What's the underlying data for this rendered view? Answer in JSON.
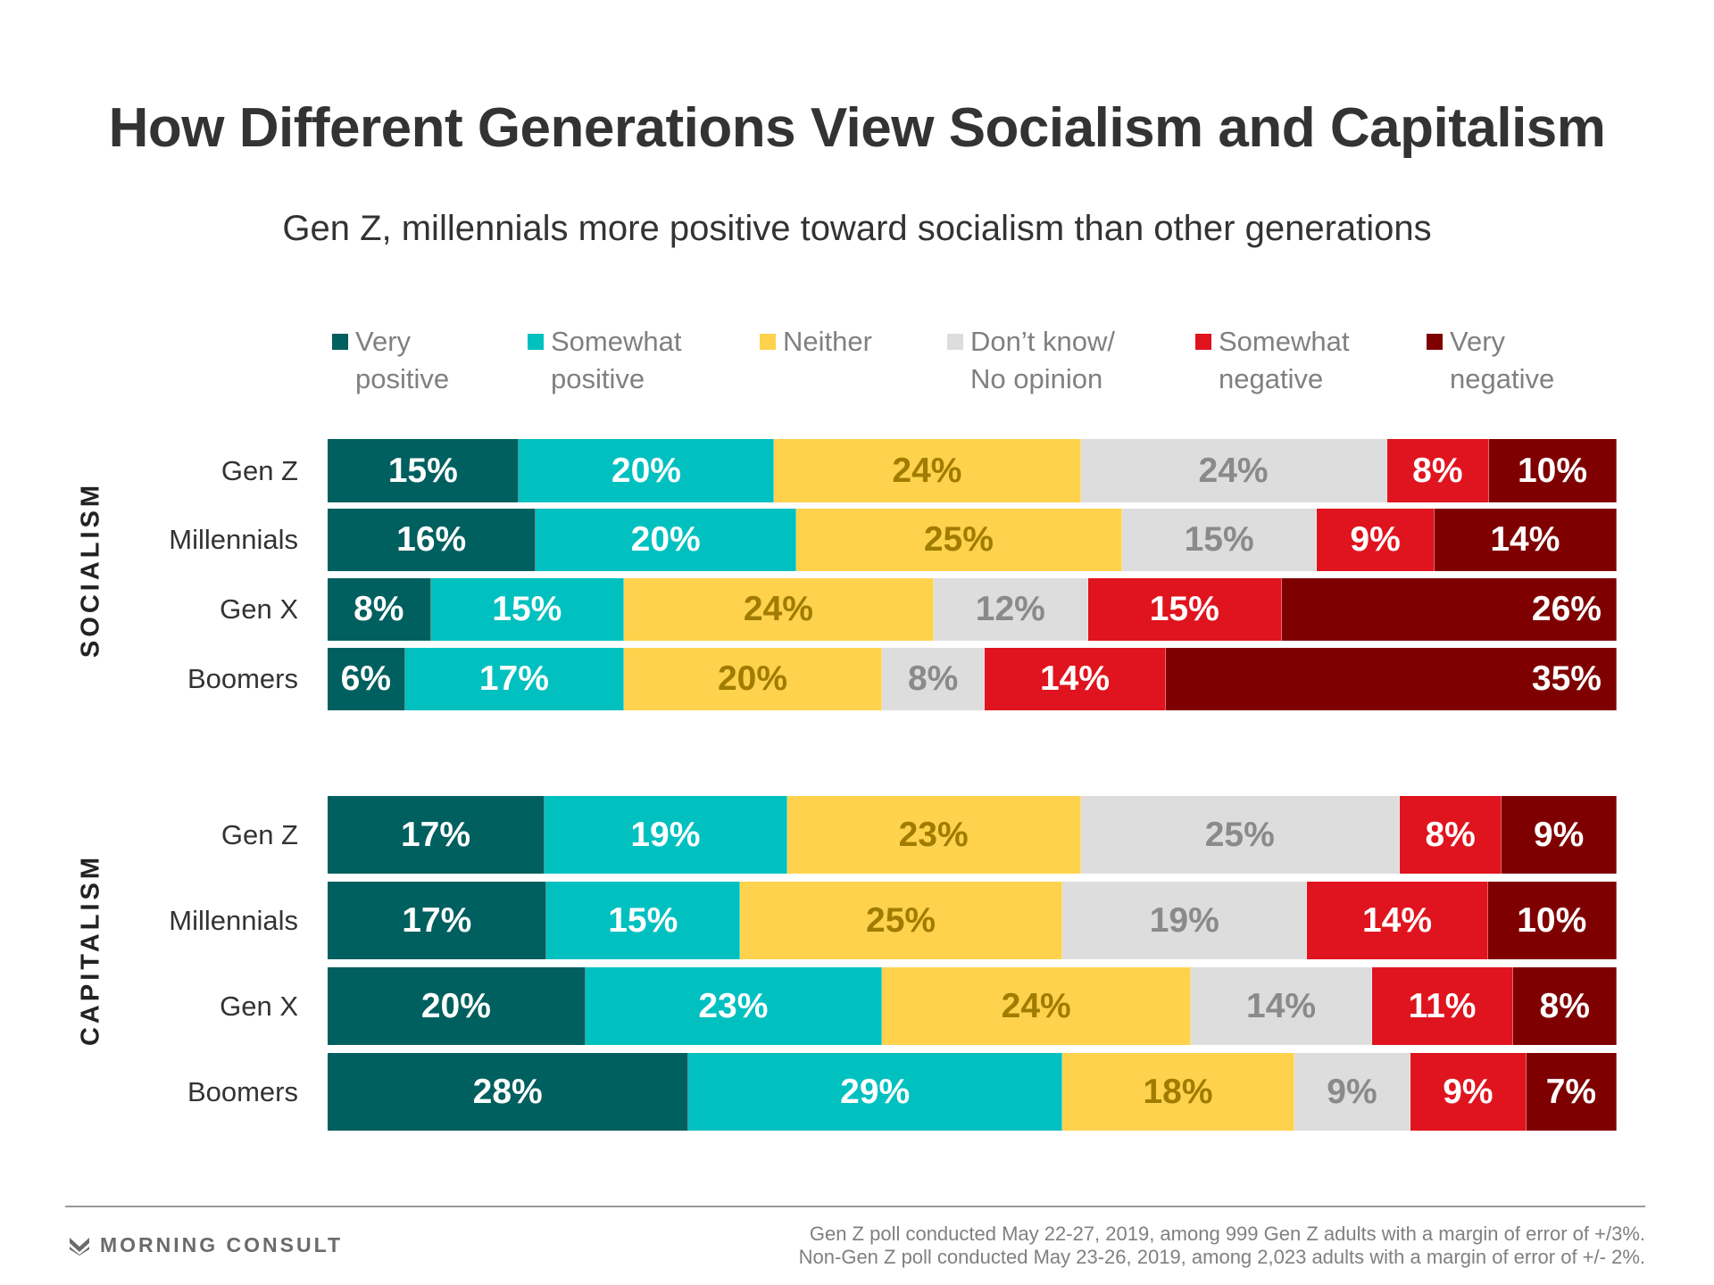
{
  "chart_data": {
    "type": "stacked-bar",
    "title": "How Different Generations View Socialism and Capitalism",
    "subtitle": "Gen Z, millennials more positive toward socialism than other generations",
    "legend": [
      {
        "label": "Very\npositive",
        "color": "#005f5f",
        "text_color": "#ffffff"
      },
      {
        "label": "Somewhat\npositive",
        "color": "#00c0c0",
        "text_color": "#ffffff"
      },
      {
        "label": "Neither",
        "color": "#ffd24d",
        "text_color": "#a07c00"
      },
      {
        "label": "Don’t know/\nNo opinion",
        "color": "#dddddd",
        "text_color": "#8a8a8a"
      },
      {
        "label": "Somewhat\nnegative",
        "color": "#e0141e",
        "text_color": "#ffffff"
      },
      {
        "label": "Very\nnegative",
        "color": "#7f0000",
        "text_color": "#ffffff"
      }
    ],
    "sections": [
      {
        "name": "SOCIALISM",
        "rows": [
          {
            "label": "Gen Z",
            "values": [
              15,
              20,
              24,
              24,
              8,
              10
            ]
          },
          {
            "label": "Millennials",
            "values": [
              16,
              20,
              25,
              15,
              9,
              14
            ]
          },
          {
            "label": "Gen X",
            "values": [
              8,
              15,
              24,
              12,
              15,
              26
            ]
          },
          {
            "label": "Boomers",
            "values": [
              6,
              17,
              20,
              8,
              14,
              35
            ]
          }
        ]
      },
      {
        "name": "CAPITALISM",
        "rows": [
          {
            "label": "Gen Z",
            "values": [
              17,
              19,
              23,
              25,
              8,
              9
            ]
          },
          {
            "label": "Millennials",
            "values": [
              17,
              15,
              25,
              19,
              14,
              10
            ]
          },
          {
            "label": "Gen X",
            "values": [
              20,
              23,
              24,
              14,
              11,
              8
            ]
          },
          {
            "label": "Boomers",
            "values": [
              28,
              29,
              18,
              9,
              9,
              7
            ]
          }
        ]
      }
    ],
    "value_suffix": "%"
  },
  "footer": {
    "brand": "MORNING CONSULT",
    "note_1": "Gen Z poll conducted May 22-27, 2019, among 999 Gen Z adults with a margin of error of +/3%.",
    "note_2": "Non-Gen Z poll conducted May 23-26, 2019, among 2,023 adults with a margin of error of +/- 2%."
  }
}
